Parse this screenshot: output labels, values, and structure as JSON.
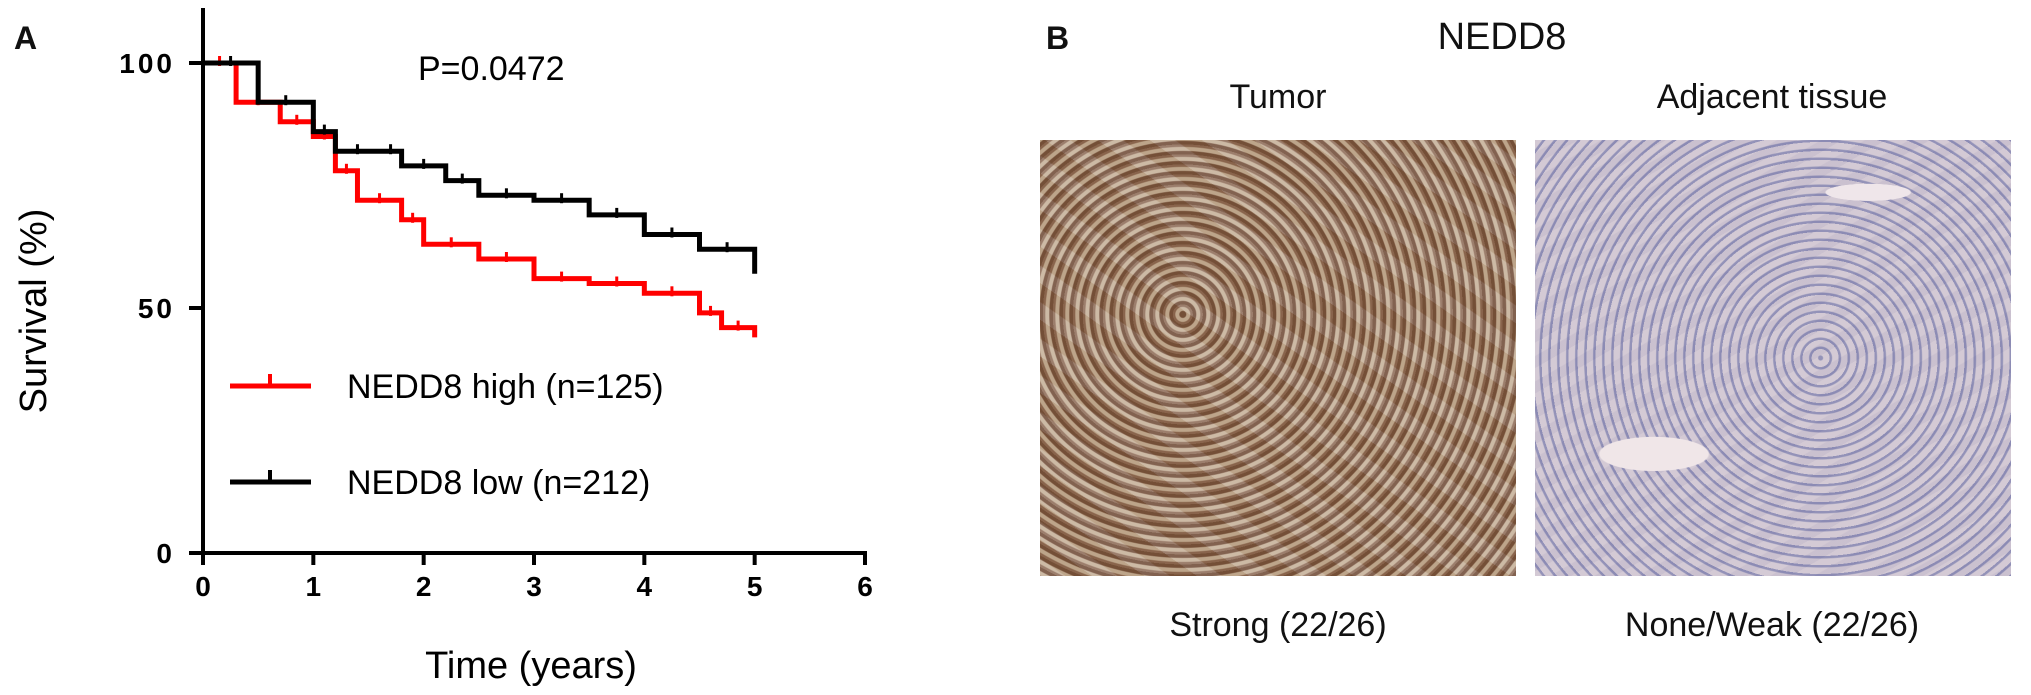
{
  "panel_a": {
    "letter": "A"
  },
  "panel_b": {
    "letter": "B",
    "title": "NEDD8",
    "columns": [
      {
        "header": "Tumor",
        "caption": "Strong (22/26)"
      },
      {
        "header": "Adjacent tissue",
        "caption": "None/Weak (22/26)"
      }
    ]
  },
  "chart_data": {
    "type": "line",
    "subtype": "kaplan-meier",
    "xlabel": "Time (years)",
    "ylabel": "Survival (%)",
    "xlim": [
      0,
      6
    ],
    "ylim": [
      0,
      100
    ],
    "xticks": [
      "0",
      "1",
      "2",
      "3",
      "4",
      "5",
      "6"
    ],
    "yticks": [
      "0",
      "50",
      "100"
    ],
    "annotation": "P=0.0472",
    "grid": false,
    "legend_position": "bottom-left",
    "series": [
      {
        "name": "NEDD8 high (n=125)",
        "color": "#ff0000",
        "x": [
          0,
          0.3,
          0.7,
          1.0,
          1.2,
          1.4,
          1.8,
          2.0,
          2.5,
          3.0,
          3.5,
          4.0,
          4.5,
          4.7,
          5.0
        ],
        "y": [
          100,
          92,
          88,
          85,
          78,
          72,
          68,
          63,
          60,
          56,
          55,
          53,
          49,
          46,
          44
        ]
      },
      {
        "name": "NEDD8 low (n=212)",
        "color": "#000000",
        "x": [
          0,
          0.5,
          1.0,
          1.2,
          1.6,
          1.8,
          2.2,
          2.5,
          3.0,
          3.5,
          4.0,
          4.5,
          5.0
        ],
        "y": [
          100,
          92,
          86,
          82,
          82,
          79,
          76,
          73,
          72,
          69,
          65,
          62,
          57
        ]
      }
    ]
  }
}
